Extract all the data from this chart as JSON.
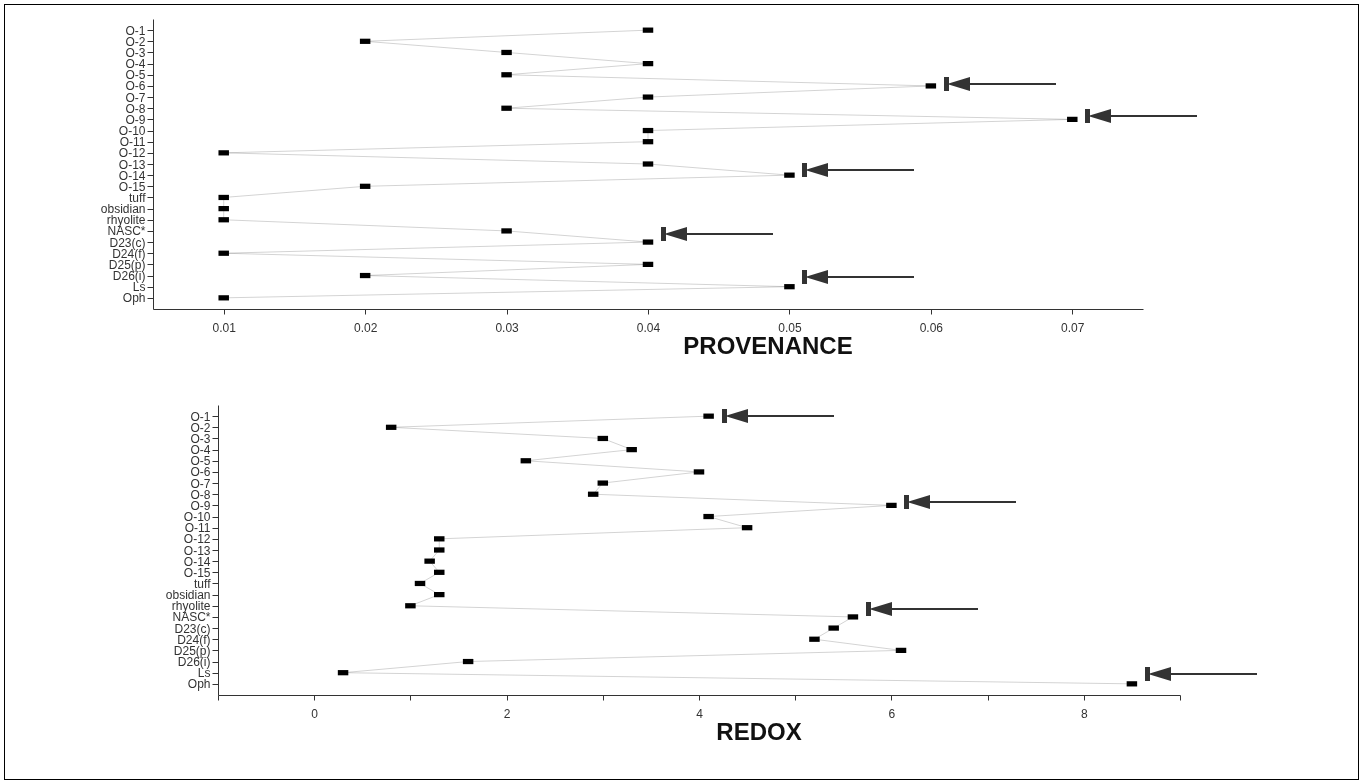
{
  "chart_data": [
    {
      "type": "line",
      "title": "PROVENANCE",
      "orientation": "horizontal",
      "marker": "square",
      "categories": [
        "O-1",
        "O-2",
        "O-3",
        "O-4",
        "O-5",
        "O-6",
        "O-7",
        "O-8",
        "O-9",
        "O-10",
        "O-11",
        "O-12",
        "O-13",
        "O-14",
        "O-15",
        "tuff",
        "obsidian",
        "rhyolite",
        "NASC*",
        "D23(c)",
        "D24(f)",
        "D25(p)",
        "D26(i)",
        "Ls",
        "Oph"
      ],
      "series": [
        {
          "color": "#000000",
          "values": [
            0.04,
            0.02,
            0.03,
            0.04,
            0.03,
            0.06,
            0.04,
            0.03,
            0.07,
            0.04,
            0.04,
            0.01,
            0.04,
            0.05,
            0.02,
            0.01,
            0.01,
            0.01,
            0.03,
            0.04,
            0.01,
            0.04,
            0.02,
            0.05,
            0.01
          ]
        }
      ],
      "xlim": [
        0.005,
        0.075
      ],
      "xticks": [
        0.01,
        0.02,
        0.03,
        0.04,
        0.05,
        0.06,
        0.07
      ]
    },
    {
      "type": "line",
      "title": "REDOX",
      "orientation": "horizontal",
      "marker": "square",
      "categories": [
        "O-1",
        "O-2",
        "O-3",
        "O-4",
        "O-5",
        "O-6",
        "O-7",
        "O-8",
        "O-9",
        "O-10",
        "O-11",
        "O-12",
        "O-13",
        "O-14",
        "O-15",
        "tuff",
        "obsidian",
        "rhyolite",
        "NASC*",
        "D23(c)",
        "D24(f)",
        "D25(p)",
        "D26(i)",
        "Ls",
        "Oph"
      ],
      "series": [
        {
          "color": "#000000",
          "values": [
            4.1,
            0.8,
            3.0,
            3.3,
            2.2,
            4.0,
            3.0,
            2.9,
            6.0,
            4.1,
            4.5,
            1.3,
            1.3,
            1.2,
            1.3,
            1.1,
            1.3,
            1.0,
            5.6,
            5.4,
            5.2,
            6.1,
            1.6,
            0.3,
            8.5
          ]
        }
      ],
      "xlim": [
        -1,
        9
      ],
      "xticks": [
        {
          "value": -1,
          "label": null
        },
        0,
        {
          "value": 1,
          "label": null
        },
        2,
        {
          "value": 3,
          "label": null
        },
        4,
        {
          "value": 5,
          "label": null
        },
        6,
        {
          "value": 7,
          "label": null
        },
        8,
        {
          "value": 9,
          "label": null
        }
      ]
    }
  ]
}
